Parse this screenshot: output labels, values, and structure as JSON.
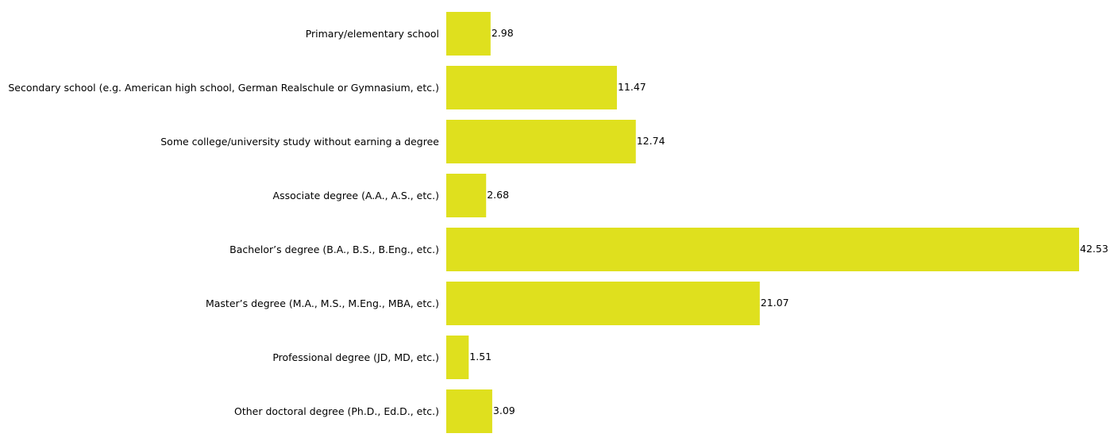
{
  "chart_data": {
    "type": "bar",
    "orientation": "horizontal",
    "categories": [
      "Primary/elementary school",
      "Secondary school (e.g. American high school, German Realschule or Gymnasium, etc.)",
      "Some college/university study without earning a degree",
      "Associate degree (A.A., A.S., etc.)",
      "Bachelor’s degree (B.A., B.S., B.Eng., etc.)",
      "Master’s degree (M.A., M.S., M.Eng., MBA, etc.)",
      "Professional degree (JD, MD, etc.)",
      "Other doctoral degree (Ph.D., Ed.D., etc.)"
    ],
    "values": [
      2.98,
      11.47,
      12.74,
      2.68,
      42.53,
      21.07,
      1.51,
      3.09
    ],
    "value_labels": [
      "2.98",
      "11.47",
      "12.74",
      "2.68",
      "42.53",
      "21.07",
      "1.51",
      "3.09"
    ],
    "bar_color": "#dfe01e",
    "xlim": [
      0,
      42.53
    ],
    "grid": false,
    "axes_visible": false
  }
}
